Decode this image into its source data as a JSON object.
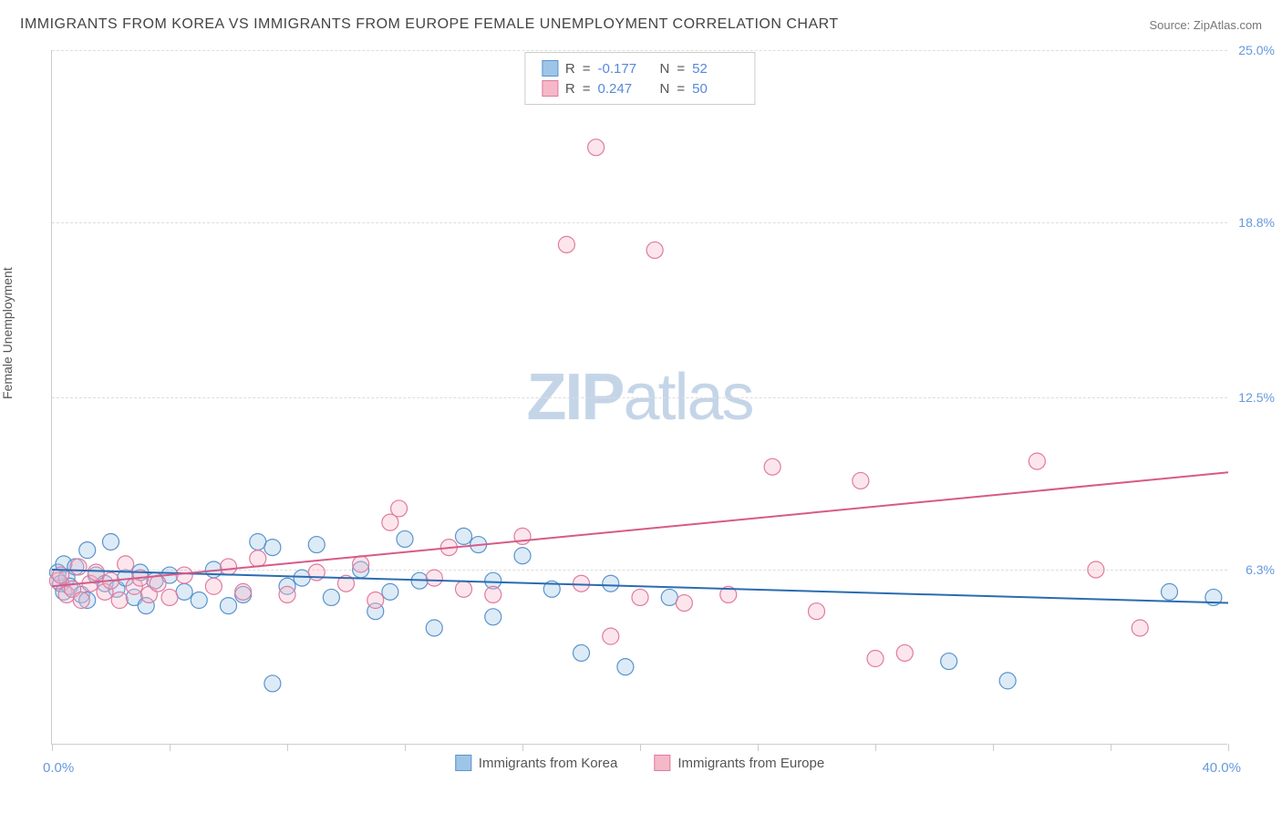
{
  "title": "IMMIGRANTS FROM KOREA VS IMMIGRANTS FROM EUROPE FEMALE UNEMPLOYMENT CORRELATION CHART",
  "source": "Source: ZipAtlas.com",
  "y_axis_title": "Female Unemployment",
  "watermark_bold": "ZIP",
  "watermark_light": "atlas",
  "chart": {
    "type": "scatter",
    "xlim": [
      0,
      40
    ],
    "ylim": [
      0,
      25
    ],
    "x_min_label": "0.0%",
    "x_max_label": "40.0%",
    "y_ticks": [
      {
        "value": 6.3,
        "label": "6.3%"
      },
      {
        "value": 12.5,
        "label": "12.5%"
      },
      {
        "value": 18.8,
        "label": "18.8%"
      },
      {
        "value": 25.0,
        "label": "25.0%"
      }
    ],
    "x_tick_positions": [
      0,
      4,
      8,
      12,
      16,
      20,
      24,
      28,
      32,
      36,
      40
    ],
    "background_color": "#ffffff",
    "grid_color": "#dddddd",
    "axis_color": "#cccccc",
    "marker_radius": 9,
    "marker_stroke_width": 1.2,
    "marker_fill_opacity": 0.35,
    "trend_line_width": 2,
    "series": [
      {
        "name": "Immigrants from Korea",
        "color_fill": "#9ec5e8",
        "color_stroke": "#5a94cc",
        "trend_color": "#2b6cb0",
        "R": "-0.177",
        "N": "52",
        "trend_line": {
          "x1": 0,
          "y1": 6.3,
          "x2": 40,
          "y2": 5.1
        },
        "points": [
          [
            0.2,
            6.2
          ],
          [
            0.3,
            5.8
          ],
          [
            0.4,
            6.5
          ],
          [
            0.4,
            5.5
          ],
          [
            0.5,
            6.0
          ],
          [
            0.6,
            5.7
          ],
          [
            0.8,
            6.4
          ],
          [
            1.0,
            5.4
          ],
          [
            1.2,
            7.0
          ],
          [
            1.2,
            5.2
          ],
          [
            1.5,
            6.1
          ],
          [
            1.8,
            5.8
          ],
          [
            2.0,
            7.3
          ],
          [
            2.2,
            5.6
          ],
          [
            2.5,
            6.0
          ],
          [
            2.8,
            5.3
          ],
          [
            3.0,
            6.2
          ],
          [
            3.2,
            5.0
          ],
          [
            3.5,
            5.9
          ],
          [
            4.0,
            6.1
          ],
          [
            4.5,
            5.5
          ],
          [
            5.0,
            5.2
          ],
          [
            5.5,
            6.3
          ],
          [
            6.0,
            5.0
          ],
          [
            6.5,
            5.4
          ],
          [
            7.0,
            7.3
          ],
          [
            7.5,
            7.1
          ],
          [
            8.0,
            5.7
          ],
          [
            8.5,
            6.0
          ],
          [
            9.0,
            7.2
          ],
          [
            9.5,
            5.3
          ],
          [
            7.5,
            2.2
          ],
          [
            10.5,
            6.3
          ],
          [
            11.0,
            4.8
          ],
          [
            11.5,
            5.5
          ],
          [
            12.0,
            7.4
          ],
          [
            12.5,
            5.9
          ],
          [
            13.0,
            4.2
          ],
          [
            14.0,
            7.5
          ],
          [
            14.5,
            7.2
          ],
          [
            15.0,
            5.9
          ],
          [
            15.0,
            4.6
          ],
          [
            16.0,
            6.8
          ],
          [
            17.0,
            5.6
          ],
          [
            18.0,
            3.3
          ],
          [
            19.0,
            5.8
          ],
          [
            19.5,
            2.8
          ],
          [
            21.0,
            5.3
          ],
          [
            30.5,
            3.0
          ],
          [
            32.5,
            2.3
          ],
          [
            38.0,
            5.5
          ],
          [
            39.5,
            5.3
          ]
        ]
      },
      {
        "name": "Immigrants from Europe",
        "color_fill": "#f5b8c8",
        "color_stroke": "#e07ba0",
        "trend_color": "#d75a88",
        "R": "0.247",
        "N": "50",
        "trend_line": {
          "x1": 0,
          "y1": 5.7,
          "x2": 40,
          "y2": 9.8
        },
        "points": [
          [
            0.2,
            5.9
          ],
          [
            0.3,
            6.1
          ],
          [
            0.5,
            5.4
          ],
          [
            0.7,
            5.6
          ],
          [
            0.9,
            6.4
          ],
          [
            1.0,
            5.2
          ],
          [
            1.3,
            5.8
          ],
          [
            1.5,
            6.2
          ],
          [
            1.8,
            5.5
          ],
          [
            2.0,
            5.9
          ],
          [
            2.3,
            5.2
          ],
          [
            2.5,
            6.5
          ],
          [
            2.8,
            5.7
          ],
          [
            3.0,
            6.0
          ],
          [
            3.3,
            5.4
          ],
          [
            3.6,
            5.8
          ],
          [
            4.0,
            5.3
          ],
          [
            4.5,
            6.1
          ],
          [
            5.5,
            5.7
          ],
          [
            6.0,
            6.4
          ],
          [
            6.5,
            5.5
          ],
          [
            7.0,
            6.7
          ],
          [
            8.0,
            5.4
          ],
          [
            9.0,
            6.2
          ],
          [
            10.0,
            5.8
          ],
          [
            10.5,
            6.5
          ],
          [
            11.0,
            5.2
          ],
          [
            11.5,
            8.0
          ],
          [
            11.8,
            8.5
          ],
          [
            13.0,
            6.0
          ],
          [
            13.5,
            7.1
          ],
          [
            14.0,
            5.6
          ],
          [
            15.0,
            5.4
          ],
          [
            16.0,
            7.5
          ],
          [
            17.5,
            18.0
          ],
          [
            18.0,
            5.8
          ],
          [
            18.5,
            21.5
          ],
          [
            19.0,
            3.9
          ],
          [
            20.0,
            5.3
          ],
          [
            20.5,
            17.8
          ],
          [
            21.5,
            5.1
          ],
          [
            23.0,
            5.4
          ],
          [
            24.5,
            10.0
          ],
          [
            26.0,
            4.8
          ],
          [
            27.5,
            9.5
          ],
          [
            28.0,
            3.1
          ],
          [
            29.0,
            3.3
          ],
          [
            33.5,
            10.2
          ],
          [
            35.5,
            6.3
          ],
          [
            37.0,
            4.2
          ]
        ]
      }
    ],
    "legend_labels": {
      "R_label": "R",
      "N_label": "N",
      "equals": "="
    }
  }
}
